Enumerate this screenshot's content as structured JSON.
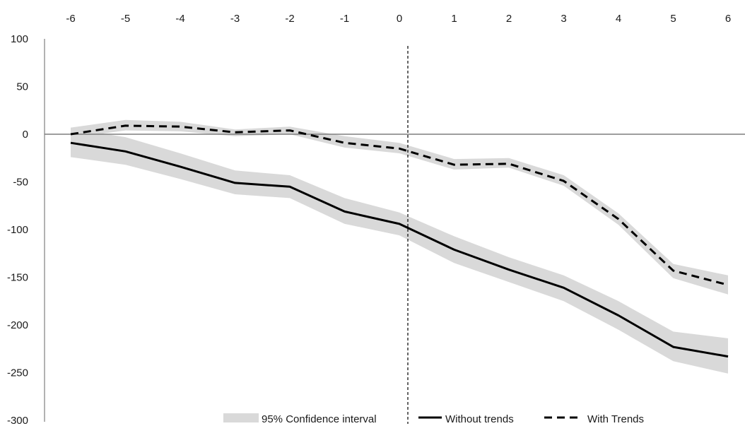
{
  "chart_data": {
    "type": "line",
    "x": [
      -6,
      -5,
      -4,
      -3,
      -2,
      -1,
      0,
      1,
      2,
      3,
      4,
      5,
      6
    ],
    "x_ticks": [
      "-6",
      "-5",
      "-4",
      "-3",
      "-2",
      "-1",
      "0",
      "1",
      "2",
      "3",
      "4",
      "5",
      "6"
    ],
    "y_ticks": [
      "100",
      "50",
      "0",
      "-50",
      "-100",
      "-150",
      "-200",
      "-250",
      "-300"
    ],
    "ylim": [
      -300,
      100
    ],
    "xlim": [
      -6,
      6
    ],
    "x_axis_position": "top",
    "zero_line": true,
    "vertical_reference_x": 0,
    "grid": false,
    "legend_position": "bottom",
    "series": [
      {
        "name": "Without trends",
        "style": "solid",
        "color": "#000000",
        "values": [
          -9,
          -18,
          -34,
          -51,
          -55,
          -81,
          -94,
          -121,
          -142,
          -161,
          -190,
          -223,
          -233
        ],
        "ci_low": [
          -24,
          -32,
          -47,
          -63,
          -67,
          -94,
          -106,
          -135,
          -155,
          -175,
          -205,
          -238,
          -251
        ],
        "ci_high": [
          6,
          -3,
          -20,
          -38,
          -43,
          -67,
          -82,
          -107,
          -129,
          -148,
          -175,
          -207,
          -214
        ]
      },
      {
        "name": "With Trends",
        "style": "dashed",
        "color": "#000000",
        "values": [
          0,
          9,
          8,
          2,
          4,
          -9,
          -15,
          -32,
          -31,
          -49,
          -89,
          -143,
          -158
        ],
        "ci_low": [
          -4,
          4,
          3,
          -2,
          0,
          -14,
          -20,
          -37,
          -35,
          -54,
          -95,
          -151,
          -168
        ],
        "ci_high": [
          7,
          15,
          13,
          5,
          8,
          -2,
          -9,
          -26,
          -25,
          -43,
          -83,
          -136,
          -148
        ]
      }
    ],
    "legend": {
      "ci_label": "95% Confidence interval",
      "without_label": "Without trends",
      "with_label": "With Trends"
    }
  },
  "colors": {
    "ci_fill": "#d9d9d9",
    "axis": "#7f7f7f",
    "line": "#000000"
  }
}
